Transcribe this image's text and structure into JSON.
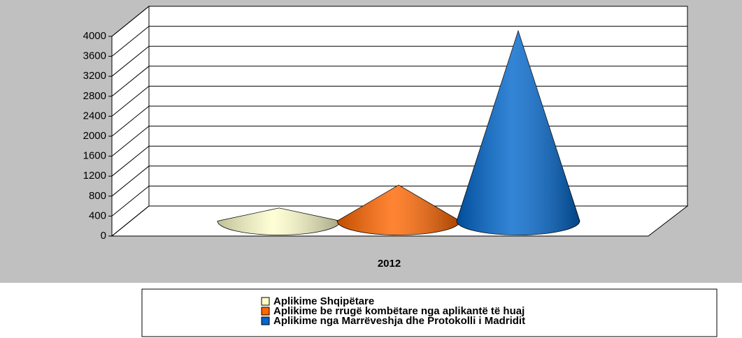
{
  "chart_data": {
    "type": "cone",
    "categories": [
      "2012"
    ],
    "series": [
      {
        "name": "Aplikime Shqipëtare",
        "color": "#ffffcc",
        "values": [
          260
        ]
      },
      {
        "name": "Aplikime be rrugë kombëtare nga aplikantë të huaj",
        "color": "#ff6600",
        "values": [
          720
        ]
      },
      {
        "name": "Aplikime nga Marrëveshja dhe Protokolli i Madridit",
        "color": "#0066cc",
        "values": [
          3810
        ]
      }
    ],
    "ylim": [
      0,
      4000
    ],
    "yticks": [
      0,
      400,
      800,
      1200,
      1600,
      2000,
      2400,
      2800,
      3200,
      3600,
      4000
    ],
    "grid": true
  }
}
